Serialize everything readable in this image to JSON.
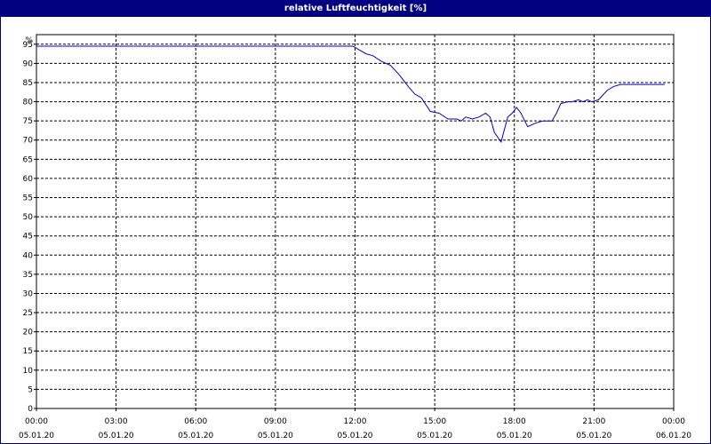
{
  "window": {
    "title": "relative Luftfeuchtigkeit [%]"
  },
  "colors": {
    "title_bg": "#000080",
    "line": "#0000cc",
    "grid": "#000000",
    "background": "#ffffff"
  },
  "chart_data": {
    "type": "line",
    "title": "relative Luftfeuchtigkeit [%]",
    "ylabel": "%",
    "xlabel": "",
    "ylim": [
      0,
      95
    ],
    "xlim": [
      "05.01.20 00:00",
      "06.01.20 00:00"
    ],
    "grid": true,
    "legend": "none",
    "y_ticks": [
      "0",
      "5",
      "10",
      "15",
      "20",
      "25",
      "30",
      "35",
      "40",
      "45",
      "50",
      "55",
      "60",
      "65",
      "70",
      "75",
      "80",
      "85",
      "90",
      "95"
    ],
    "x_ticks": [
      {
        "time": "00:00",
        "date": "05.01.20"
      },
      {
        "time": "03:00",
        "date": "05.01.20"
      },
      {
        "time": "06:00",
        "date": "05.01.20"
      },
      {
        "time": "09:00",
        "date": "05.01.20"
      },
      {
        "time": "12:00",
        "date": "05.01.20"
      },
      {
        "time": "15:00",
        "date": "05.01.20"
      },
      {
        "time": "18:00",
        "date": "05.01.20"
      },
      {
        "time": "21:00",
        "date": "05.01.20"
      },
      {
        "time": "00:00",
        "date": "06.01.20"
      }
    ],
    "series": [
      {
        "x": [
          "05.01.20 00:00",
          "05.01.20 06:00",
          "05.01.20 11:55",
          "05.01.20 12:10",
          "05.01.20 12:25",
          "05.01.20 12:40",
          "05.01.20 13:00",
          "05.01.20 13:20",
          "05.01.20 13:40",
          "05.01.20 14:00",
          "05.01.20 14:15",
          "05.01.20 14:30",
          "05.01.20 14:50",
          "05.01.20 15:10",
          "05.01.20 15:30",
          "05.01.20 15:50",
          "05.01.20 16:00",
          "05.01.20 16:10",
          "05.01.20 16:25",
          "05.01.20 16:40",
          "05.01.20 16:55",
          "05.01.20 17:05",
          "05.01.20 17:15",
          "05.01.20 17:30",
          "05.01.20 17:45",
          "05.01.20 17:55",
          "05.01.20 18:05",
          "05.01.20 18:15",
          "05.01.20 18:30",
          "05.01.20 18:50",
          "05.01.20 19:05",
          "05.01.20 19:25",
          "05.01.20 19:35",
          "05.01.20 19:45",
          "05.01.20 20:00",
          "05.01.20 20:10",
          "05.01.20 20:25",
          "05.01.20 20:35",
          "05.01.20 20:45",
          "05.01.20 20:55",
          "05.01.20 21:10",
          "05.01.20 21:30",
          "05.01.20 21:45",
          "05.01.20 22:00",
          "05.01.20 22:30",
          "05.01.20 23:00",
          "05.01.20 23:40"
        ],
        "values": [
          94.5,
          94.5,
          94.5,
          93.5,
          92.5,
          92.0,
          90.5,
          89.5,
          87.0,
          84.0,
          82.0,
          81.0,
          77.5,
          77.0,
          75.5,
          75.5,
          75.0,
          76.0,
          75.5,
          76.0,
          77.0,
          76.0,
          72.0,
          69.5,
          76.0,
          77.0,
          78.5,
          77.0,
          73.5,
          74.5,
          75.0,
          75.0,
          77.0,
          79.5,
          80.0,
          80.0,
          80.5,
          80.0,
          80.5,
          80.0,
          80.5,
          83.0,
          84.0,
          84.5,
          84.5,
          84.5,
          84.5
        ]
      }
    ]
  }
}
